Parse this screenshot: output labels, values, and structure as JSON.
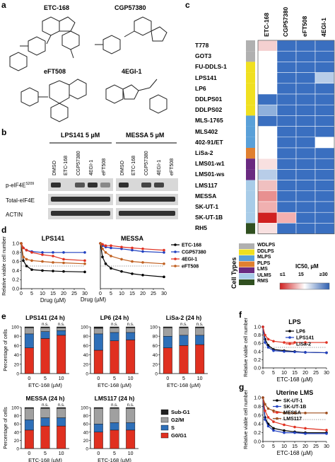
{
  "panels": {
    "a": "a",
    "b": "b",
    "c": "c",
    "d": "d",
    "e": "e",
    "f": "f",
    "g": "g"
  },
  "structures": {
    "s1": "ETC-168",
    "s2": "CGP57380",
    "s3": "eFT508",
    "s4": "4EGI-1"
  },
  "blot": {
    "group1": "LPS141 5 µM",
    "group2": "MESSA 5 µM",
    "lanes": [
      "DMSO",
      "ETC-168",
      "CGP57380",
      "4EGI-1",
      "eFT508",
      "DMSO",
      "ETC-168",
      "CGP57380",
      "4EGI-1",
      "eFT508"
    ],
    "rows": [
      "p-eIF4E",
      "Total-eIF4E",
      "ACTIN"
    ],
    "superscript": "S209"
  },
  "heatmap": {
    "columns": [
      "ETC-168",
      "CGP57380",
      "eFT508",
      "4EGI-1"
    ],
    "rows": [
      "T778",
      "GOT3",
      "FU-DDLS-1",
      "LPS141",
      "LP6",
      "DDLPS01",
      "DDLPS02",
      "MLS-1765",
      "MLS402",
      "402-91/ET",
      "LiSa-2",
      "LMS01-w1",
      "LMS01-ws",
      "LMS117",
      "MESSA",
      "SK-UT-1",
      "SK-UT-1B",
      "RH5"
    ],
    "row_types": [
      "WDLPS",
      "WDLPS",
      "DDLPS",
      "DDLPS",
      "DDLPS",
      "DDLPS",
      "DDLPS",
      "MLPS",
      "MLPS",
      "MLPS",
      "PLPS",
      "LMS",
      "LMS",
      "ULMS",
      "ULMS",
      "ULMS",
      "ULMS",
      "RMS"
    ],
    "cell_colors": [
      [
        "#f4d0d0",
        "#3a6fc0",
        "#3a6fc0",
        "#3a6fc0"
      ],
      [
        "#ffffff",
        "#3a6fc0",
        "#3a6fc0",
        "#3a6fc0"
      ],
      [
        "#ffffff",
        "#3a6fc0",
        "#3a6fc0",
        "#3a6fc0"
      ],
      [
        "#ffffff",
        "#3a6fc0",
        "#3a6fc0",
        "#b8cde8"
      ],
      [
        "#ffffff",
        "#3a6fc0",
        "#3a6fc0",
        "#3a6fc0"
      ],
      [
        "#3a6fc0",
        "#3a6fc0",
        "#3a6fc0",
        "#3a6fc0"
      ],
      [
        "#8fb0dc",
        "#3a6fc0",
        "#3a6fc0",
        "#3a6fc0"
      ],
      [
        "#3a6fc0",
        "#3a6fc0",
        "#3a6fc0",
        "#3a6fc0"
      ],
      [
        "#ffffff",
        "#3a6fc0",
        "#3a6fc0",
        "#3a6fc0"
      ],
      [
        "#ffffff",
        "#3a6fc0",
        "#3a6fc0",
        "#ffffff"
      ],
      [
        "#ffffff",
        "#3a6fc0",
        "#3a6fc0",
        "#3a6fc0"
      ],
      [
        "#f8e0e0",
        "#3a6fc0",
        "#3a6fc0",
        "#3a6fc0"
      ],
      [
        "#b8cde8",
        "#3a6fc0",
        "#3a6fc0",
        "#3a6fc0"
      ],
      [
        "#f0c0c0",
        "#3a6fc0",
        "#3a6fc0",
        "#3a6fc0"
      ],
      [
        "#e89090",
        "#3a6fc0",
        "#3a6fc0",
        "#3a6fc0"
      ],
      [
        "#f0b0b0",
        "#3a6fc0",
        "#3a6fc0",
        "#3a6fc0"
      ],
      [
        "#d02020",
        "#f4b0b0",
        "#3a6fc0",
        "#3a6fc0"
      ],
      [
        "#f8e0e0",
        "#3a6fc0",
        "#3a6fc0",
        "#3a6fc0"
      ]
    ],
    "legend_title": "Cell Types",
    "types": [
      {
        "name": "WDLPS",
        "color": "#b0b0b0"
      },
      {
        "name": "DDLPS",
        "color": "#f0e020"
      },
      {
        "name": "MLPS",
        "color": "#5aa0d8"
      },
      {
        "name": "PLPS",
        "color": "#e08030"
      },
      {
        "name": "LMS",
        "color": "#6a2a80"
      },
      {
        "name": "ULMS",
        "color": "#a8cce8"
      },
      {
        "name": "RMS",
        "color": "#305020"
      }
    ],
    "scale_title": "IC50, µM",
    "scale_ticks": [
      "≤1",
      "15",
      "≥30"
    ]
  },
  "chart_data": [
    {
      "type": "line",
      "title": "LPS141",
      "xlabel": "Drug (µM)",
      "ylabel": "Relative viable cell number",
      "x": [
        0,
        1,
        2.5,
        5,
        10,
        15,
        20,
        30
      ],
      "xlim": [
        0,
        30
      ],
      "ylim": [
        0,
        1.0
      ],
      "xticks": [
        "0",
        "5",
        "10",
        "15",
        "20",
        "25",
        "30"
      ],
      "yticks": [
        "0.0",
        "0.2",
        "0.4",
        "0.6",
        "0.8",
        "1.0"
      ],
      "series": [
        {
          "name": "ETC-168",
          "color": "#000000",
          "values": [
            1.0,
            0.62,
            0.5,
            0.42,
            0.4,
            0.39,
            0.38,
            0.37
          ]
        },
        {
          "name": "CGP57380",
          "color": "#2040c0",
          "values": [
            1.0,
            0.9,
            0.85,
            0.82,
            0.8,
            0.8,
            0.8,
            0.8
          ]
        },
        {
          "name": "4EGI-1",
          "color": "#e03020",
          "values": [
            1.0,
            0.9,
            0.85,
            0.8,
            0.75,
            0.72,
            0.65,
            0.62
          ]
        },
        {
          "name": "eFT508",
          "color": "#c06020",
          "values": [
            1.0,
            0.7,
            0.65,
            0.62,
            0.6,
            0.58,
            0.57,
            0.55
          ]
        }
      ]
    },
    {
      "type": "line",
      "title": "MESSA",
      "xlabel": "Drug (µM)",
      "ylabel": "",
      "x": [
        0,
        1,
        2.5,
        5,
        10,
        15,
        20,
        30
      ],
      "xlim": [
        0,
        30
      ],
      "ylim": [
        0,
        1.0
      ],
      "xticks": [
        "0",
        "5",
        "10",
        "15",
        "20",
        "25",
        "30"
      ],
      "yticks": [
        "0.0",
        "0.2",
        "0.4",
        "0.6",
        "0.8",
        "1.0"
      ],
      "series": [
        {
          "name": "ETC-168",
          "color": "#000000",
          "values": [
            1.0,
            0.7,
            0.55,
            0.45,
            0.38,
            0.33,
            0.3,
            0.26
          ]
        },
        {
          "name": "CGP57380",
          "color": "#2040c0",
          "values": [
            1.0,
            0.95,
            0.92,
            0.9,
            0.88,
            0.85,
            0.82,
            0.8
          ]
        },
        {
          "name": "4EGI-1",
          "color": "#e03020",
          "values": [
            1.0,
            0.98,
            0.95,
            0.95,
            0.92,
            0.9,
            0.88,
            0.85
          ]
        },
        {
          "name": "eFT508",
          "color": "#c06020",
          "values": [
            1.0,
            0.88,
            0.8,
            0.72,
            0.65,
            0.6,
            0.58,
            0.55
          ]
        }
      ]
    },
    {
      "type": "bar",
      "title": "LPS141 (24 h)",
      "xlabel": "ETC-168 (µM)",
      "ylabel": "Percentage of cells",
      "categories": [
        "0",
        "5",
        "10"
      ],
      "yticks": [
        "0",
        "20",
        "40",
        "60",
        "80",
        "100"
      ],
      "ylim": [
        0,
        100
      ],
      "series": [
        {
          "name": "G0/G1",
          "values": [
            55,
            75,
            82
          ]
        },
        {
          "name": "S",
          "values": [
            30,
            15,
            10
          ]
        },
        {
          "name": "G2/M",
          "values": [
            13,
            8,
            6
          ]
        },
        {
          "name": "Sub-G1",
          "values": [
            2,
            2,
            2
          ]
        }
      ],
      "annotations": [
        "",
        "n.s.",
        "n.s."
      ]
    },
    {
      "type": "bar",
      "title": "LP6  (24 h)",
      "xlabel": "ETC-168 (µM)",
      "ylabel": "",
      "categories": [
        "0",
        "5",
        "10"
      ],
      "yticks": [
        "0",
        "20",
        "40",
        "60",
        "80",
        "100"
      ],
      "ylim": [
        0,
        100
      ],
      "series": [
        {
          "name": "G0/G1",
          "values": [
            50,
            70,
            72
          ]
        },
        {
          "name": "S",
          "values": [
            35,
            18,
            16
          ]
        },
        {
          "name": "G2/M",
          "values": [
            12,
            10,
            10
          ]
        },
        {
          "name": "Sub-G1",
          "values": [
            3,
            2,
            2
          ]
        }
      ],
      "annotations": [
        "",
        "n.s.",
        "n.s."
      ]
    },
    {
      "type": "bar",
      "title": "LiSa-2 (24 h)",
      "xlabel": "ETC-168 (µM)",
      "ylabel": "",
      "categories": [
        "0",
        "5",
        "10"
      ],
      "yticks": [
        "0",
        "20",
        "40",
        "60",
        "80",
        "100"
      ],
      "ylim": [
        0,
        100
      ],
      "series": [
        {
          "name": "G0/G1",
          "values": [
            55,
            60,
            62
          ]
        },
        {
          "name": "S",
          "values": [
            25,
            22,
            20
          ]
        },
        {
          "name": "G2/M",
          "values": [
            18,
            16,
            16
          ]
        },
        {
          "name": "Sub-G1",
          "values": [
            2,
            2,
            2
          ]
        }
      ],
      "annotations": [
        "",
        "n.s.",
        "n.s."
      ]
    },
    {
      "type": "bar",
      "title": "MESSA (24 h)",
      "xlabel": "ETC-168 (µM)",
      "ylabel": "Percentage of cells",
      "categories": [
        "0",
        "5",
        "10"
      ],
      "yticks": [
        "0",
        "20",
        "40",
        "60",
        "80",
        "100"
      ],
      "ylim": [
        0,
        100
      ],
      "series": [
        {
          "name": "G0/G1",
          "values": [
            45,
            55,
            55
          ]
        },
        {
          "name": "S",
          "values": [
            25,
            20,
            20
          ]
        },
        {
          "name": "G2/M",
          "values": [
            28,
            23,
            23
          ]
        },
        {
          "name": "Sub-G1",
          "values": [
            2,
            2,
            2
          ]
        }
      ],
      "annotations": [
        "",
        "n.s.",
        "n.s."
      ]
    },
    {
      "type": "bar",
      "title": "LMS117 (24 h)",
      "xlabel": "ETC-168 (µM)",
      "ylabel": "",
      "categories": [
        "0",
        "5",
        "10"
      ],
      "yticks": [
        "0",
        "20",
        "40",
        "60",
        "80",
        "100"
      ],
      "ylim": [
        0,
        100
      ],
      "series": [
        {
          "name": "G0/G1",
          "values": [
            40,
            45,
            45
          ]
        },
        {
          "name": "S",
          "values": [
            20,
            18,
            18
          ]
        },
        {
          "name": "G2/M",
          "values": [
            38,
            35,
            35
          ]
        },
        {
          "name": "Sub-G1",
          "values": [
            2,
            2,
            2
          ]
        }
      ],
      "annotations": [
        "",
        "n.s.",
        "n.s."
      ]
    },
    {
      "type": "line",
      "title": "LPS",
      "xlabel": "ETC-168 (µM)",
      "ylabel": "Relative viable cell number",
      "x": [
        0,
        1,
        2.5,
        5,
        10,
        15,
        20,
        30
      ],
      "xlim": [
        0,
        30
      ],
      "ylim": [
        0,
        1.0
      ],
      "xticks": [
        "0",
        "5",
        "10",
        "15",
        "20",
        "25",
        "30"
      ],
      "yticks": [
        "0.0",
        "0.2",
        "0.4",
        "0.6",
        "0.8",
        "1.0"
      ],
      "series": [
        {
          "name": "LP6",
          "color": "#000000",
          "values": [
            1.0,
            0.7,
            0.55,
            0.45,
            0.42,
            0.4,
            0.38,
            0.37
          ]
        },
        {
          "name": "LPS141",
          "color": "#2040c0",
          "values": [
            1.0,
            0.62,
            0.5,
            0.42,
            0.4,
            0.39,
            0.38,
            0.37
          ]
        },
        {
          "name": "LiSa-2",
          "color": "#e03020",
          "values": [
            1.0,
            0.8,
            0.7,
            0.65,
            0.62,
            0.62,
            0.62,
            0.62
          ]
        }
      ]
    },
    {
      "type": "line",
      "title": "Uterine LMS",
      "xlabel": "ETC-168 (µM)",
      "ylabel": "Relative viable cell number",
      "x": [
        0,
        1,
        2.5,
        5,
        10,
        15,
        20,
        30
      ],
      "xlim": [
        0,
        30
      ],
      "ylim": [
        0,
        1.0
      ],
      "xticks": [
        "0",
        "5",
        "10",
        "15",
        "20",
        "25",
        "30"
      ],
      "yticks": [
        "0.0",
        "0.2",
        "0.4",
        "0.6",
        "0.8",
        "1.0"
      ],
      "series": [
        {
          "name": "SK-UT-1",
          "color": "#000000",
          "values": [
            1.0,
            0.55,
            0.4,
            0.3,
            0.25,
            0.22,
            0.2,
            0.2
          ]
        },
        {
          "name": "SK-UT-1B",
          "color": "#2040c0",
          "values": [
            1.0,
            0.5,
            0.35,
            0.25,
            0.2,
            0.2,
            0.18,
            0.18
          ]
        },
        {
          "name": "MESSA",
          "color": "#e03020",
          "values": [
            1.0,
            0.7,
            0.55,
            0.45,
            0.38,
            0.33,
            0.3,
            0.26
          ]
        },
        {
          "name": "LMS117",
          "color": "#a05020",
          "values": [
            1.0,
            0.85,
            0.75,
            0.7,
            0.65,
            0.65,
            0.65,
            0.65
          ]
        }
      ]
    }
  ],
  "cell_cycle_legend": [
    "Sub-G1",
    "G2/M",
    "S",
    "G0/G1"
  ],
  "cell_cycle_colors": [
    "#202020",
    "#a0a0a0",
    "#2e6fb8",
    "#e03020"
  ]
}
